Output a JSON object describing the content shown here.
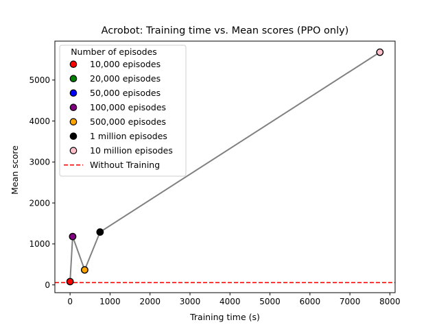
{
  "chart_data": {
    "type": "scatter",
    "title": "Acrobot: Training time vs. Mean scores (PPO only)",
    "xlabel": "Training time (s)",
    "ylabel": "Mean score",
    "xlim": [
      -380,
      8130
    ],
    "ylim": [
      -190,
      5950
    ],
    "xticks": [
      "0",
      "1000",
      "2000",
      "3000",
      "4000",
      "5000",
      "6000",
      "7000",
      "8000"
    ],
    "yticks": [
      "0",
      "1000",
      "2000",
      "3000",
      "4000",
      "5000"
    ],
    "grid": false,
    "legend": {
      "title": "Number of episodes",
      "placement": "upper-left"
    },
    "series": [
      {
        "name": "10,000 episodes",
        "color": "#ff0000",
        "x": [
          0
        ],
        "y": [
          80
        ]
      },
      {
        "name": "20,000 episodes",
        "color": "#008000",
        "x": [],
        "y": []
      },
      {
        "name": "50,000 episodes",
        "color": "#0000ff",
        "x": [],
        "y": []
      },
      {
        "name": "100,000 episodes",
        "color": "#800080",
        "x": [
          65
        ],
        "y": [
          1180
        ]
      },
      {
        "name": "500,000 episodes",
        "color": "#ffa500",
        "x": [
          365
        ],
        "y": [
          365
        ]
      },
      {
        "name": "1 million episodes",
        "color": "#000000",
        "x": [
          750
        ],
        "y": [
          1290
        ]
      },
      {
        "name": "10 million episodes",
        "color": "#ffc0cb",
        "x": [
          7750
        ],
        "y": [
          5680
        ]
      }
    ],
    "connecting_line": {
      "color": "#808080",
      "x": [
        0,
        65,
        365,
        750,
        7750
      ],
      "y": [
        80,
        1180,
        365,
        1290,
        5680
      ]
    },
    "baseline": {
      "name": "Without Training",
      "color": "#ff0000",
      "y": 55
    }
  }
}
